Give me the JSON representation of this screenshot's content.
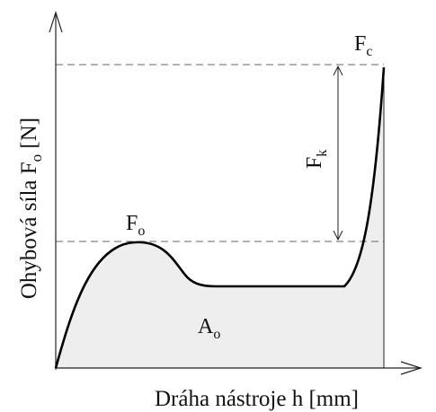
{
  "labels": {
    "y_axis": {
      "main": "Ohybová síla F",
      "sub": "o",
      "unit": " [N]"
    },
    "x_axis": "Dráha nástroje h [mm]",
    "peak_force": {
      "main": "F",
      "sub": "o"
    },
    "max_force": {
      "main": "F",
      "sub": "c"
    },
    "force_difference": {
      "main": "F",
      "sub": "k"
    },
    "work_area": {
      "main": "A",
      "sub": "o"
    }
  },
  "colors": {
    "area_fill": "#eeeeee",
    "curve": "#000000",
    "axis": "#222222",
    "dashed": "#666666"
  }
}
